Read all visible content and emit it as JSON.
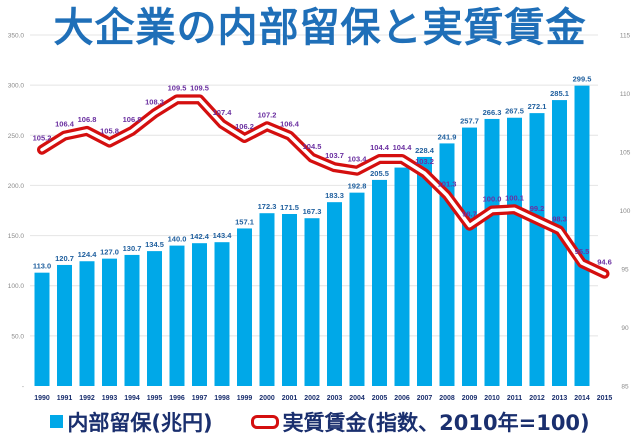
{
  "chart_data": {
    "type": "bar",
    "title": "大企業の内部留保と実質賃金",
    "xlabel": "",
    "categories": [
      "1990",
      "1991",
      "1992",
      "1993",
      "1994",
      "1995",
      "1996",
      "1997",
      "1998",
      "1999",
      "2000",
      "2001",
      "2002",
      "2003",
      "2004",
      "2005",
      "2006",
      "2007",
      "2008",
      "2009",
      "2010",
      "2011",
      "2012",
      "2013",
      "2014",
      "2015"
    ],
    "series": [
      {
        "name": "内部留保(兆円)",
        "type": "bar",
        "axis": "left",
        "color": "#00a8e8",
        "label_color": "#1f5f9e",
        "values": [
          113.0,
          120.7,
          124.4,
          127.0,
          130.7,
          134.5,
          140.0,
          142.4,
          143.4,
          157.1,
          172.3,
          171.5,
          167.3,
          183.3,
          192.8,
          205.5,
          217.8,
          228.4,
          241.9,
          257.7,
          266.3,
          267.5,
          272.1,
          285.1,
          299.5,
          null
        ],
        "labels": [
          "113.0",
          "120.7",
          "124.4",
          "127.0",
          "130.7",
          "134.5",
          "140.0",
          "142.4",
          "143.4",
          "157.1",
          "172.3",
          "171.5",
          "167.3",
          "183.3",
          "192.8",
          "205.5",
          "217.8",
          "228.4",
          "241.9",
          "257.7",
          "266.3",
          "267.5",
          "272.1",
          "285.1",
          "299.5",
          ""
        ]
      },
      {
        "name": "実質賃金(指数、2010年=100)",
        "type": "line",
        "axis": "right",
        "color": "#d40f0f",
        "label_color": "#6a2fa0",
        "values": [
          105.2,
          106.4,
          106.8,
          105.8,
          106.8,
          108.3,
          109.5,
          109.5,
          107.4,
          106.2,
          107.2,
          106.4,
          104.5,
          103.7,
          103.4,
          104.4,
          104.4,
          103.2,
          101.3,
          98.7,
          100.0,
          100.1,
          99.2,
          98.3,
          95.5,
          94.6
        ],
        "labels": [
          "105.2",
          "106.4",
          "106.8",
          "105.8",
          "106.8",
          "108.3",
          "109.5",
          "109.5",
          "107.4",
          "106.2",
          "107.2",
          "106.4",
          "104.5",
          "103.7",
          "103.4",
          "104.4",
          "104.4",
          "103.2",
          "101.3",
          "98.7",
          "100.0",
          "100.1",
          "99.2",
          "98.3",
          "95.5",
          "94.6"
        ]
      }
    ],
    "y_left": {
      "ylim": [
        0,
        350
      ],
      "ticks": [
        "-",
        "50.0",
        "100.0",
        "150.0",
        "200.0",
        "250.0",
        "300.0",
        "350.0"
      ],
      "tick_values": [
        0,
        50,
        100,
        150,
        200,
        250,
        300,
        350
      ]
    },
    "y_right": {
      "ylim": [
        85,
        115
      ],
      "ticks": [
        "85",
        "90",
        "95",
        "100",
        "105",
        "110",
        "115"
      ],
      "tick_values": [
        85,
        90,
        95,
        100,
        105,
        110,
        115
      ]
    },
    "grid": true,
    "legend_position": "bottom"
  },
  "legend": {
    "bar_label": "内部留保(兆円)",
    "line_label": "実質賃金(指数、2010年=100)"
  }
}
